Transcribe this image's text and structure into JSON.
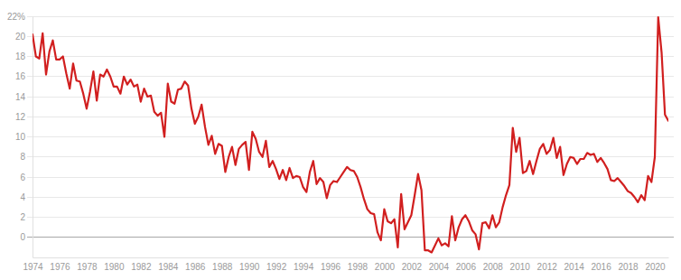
{
  "chart_data": {
    "type": "line",
    "color": "#d11f1f",
    "grid": true,
    "xlim": [
      1974,
      2021
    ],
    "xticks": [
      1974,
      1976,
      1978,
      1980,
      1982,
      1984,
      1986,
      1988,
      1990,
      1992,
      1994,
      1996,
      1998,
      2000,
      2002,
      2004,
      2006,
      2008,
      2010,
      2012,
      2014,
      2016,
      2018,
      2020
    ],
    "ylim": [
      -2,
      22
    ],
    "yticks": [
      0,
      2,
      4,
      6,
      8,
      10,
      12,
      14,
      16,
      18,
      20,
      {
        "value": 22,
        "label": "22%"
      }
    ],
    "x": [
      1974,
      1974.25,
      1974.5,
      1974.75,
      1975,
      1975.25,
      1975.5,
      1975.75,
      1976,
      1976.25,
      1976.5,
      1976.75,
      1977,
      1977.25,
      1977.5,
      1977.75,
      1978,
      1978.25,
      1978.5,
      1978.75,
      1979,
      1979.25,
      1979.5,
      1979.75,
      1980,
      1980.25,
      1980.5,
      1980.75,
      1981,
      1981.25,
      1981.5,
      1981.75,
      1982,
      1982.25,
      1982.5,
      1982.75,
      1983,
      1983.25,
      1983.5,
      1983.75,
      1984,
      1984.25,
      1984.5,
      1984.75,
      1985,
      1985.25,
      1985.5,
      1985.75,
      1986,
      1986.25,
      1986.5,
      1986.75,
      1987,
      1987.25,
      1987.5,
      1987.75,
      1988,
      1988.25,
      1988.5,
      1988.75,
      1989,
      1989.25,
      1989.5,
      1989.75,
      1990,
      1990.25,
      1990.5,
      1990.75,
      1991,
      1991.25,
      1991.5,
      1991.75,
      1992,
      1992.25,
      1992.5,
      1992.75,
      1993,
      1993.25,
      1993.5,
      1993.75,
      1994,
      1994.25,
      1994.5,
      1994.75,
      1995,
      1995.25,
      1995.5,
      1995.75,
      1996,
      1996.25,
      1996.5,
      1996.75,
      1997,
      1997.25,
      1997.5,
      1997.75,
      1998,
      1998.25,
      1998.5,
      1998.75,
      1999,
      1999.25,
      1999.5,
      1999.75,
      2000,
      2000.25,
      2000.5,
      2000.75,
      2001,
      2001.25,
      2001.5,
      2001.75,
      2002,
      2002.25,
      2002.5,
      2002.75,
      2003,
      2003.25,
      2003.5,
      2003.75,
      2004,
      2004.25,
      2004.5,
      2004.75,
      2005,
      2005.25,
      2005.5,
      2005.75,
      2006,
      2006.25,
      2006.5,
      2006.75,
      2007,
      2007.25,
      2007.5,
      2007.75,
      2008,
      2008.25,
      2008.5,
      2008.75,
      2009,
      2009.25,
      2009.5,
      2009.75,
      2010,
      2010.25,
      2010.5,
      2010.75,
      2011,
      2011.25,
      2011.5,
      2011.75,
      2012,
      2012.25,
      2012.5,
      2012.75,
      2013,
      2013.25,
      2013.5,
      2013.75,
      2014,
      2014.25,
      2014.5,
      2014.75,
      2015,
      2015.25,
      2015.5,
      2015.75,
      2016,
      2016.25,
      2016.5,
      2016.75,
      2017,
      2017.25,
      2017.5,
      2017.75,
      2018,
      2018.25,
      2018.5,
      2018.75,
      2019,
      2019.25,
      2019.5,
      2019.75,
      2020,
      2020.25,
      2020.5,
      2020.75,
      2021
    ],
    "values": [
      20.2,
      18.0,
      17.8,
      20.3,
      16.2,
      18.5,
      19.6,
      17.7,
      17.7,
      18.0,
      16.3,
      14.8,
      17.3,
      15.6,
      15.5,
      14.3,
      12.8,
      14.5,
      16.5,
      13.6,
      16.2,
      16.0,
      16.7,
      16.0,
      15.0,
      15.0,
      14.3,
      16.0,
      15.2,
      15.7,
      15.0,
      15.2,
      13.5,
      14.8,
      14.0,
      14.1,
      12.5,
      12.1,
      12.4,
      10.0,
      15.3,
      13.5,
      13.3,
      14.7,
      14.8,
      15.5,
      15.1,
      12.8,
      11.3,
      12.0,
      13.2,
      11.0,
      9.2,
      10.1,
      8.3,
      9.3,
      9.1,
      6.5,
      8.0,
      9.0,
      7.2,
      8.8,
      9.2,
      9.5,
      6.7,
      10.5,
      9.8,
      8.5,
      8.0,
      9.6,
      7.0,
      7.6,
      6.8,
      5.8,
      6.7,
      5.7,
      6.9,
      5.9,
      6.1,
      6.0,
      5.0,
      4.5,
      6.5,
      7.6,
      5.3,
      5.9,
      5.5,
      3.9,
      5.2,
      5.6,
      5.5,
      6.0,
      6.5,
      7.0,
      6.7,
      6.6,
      6.0,
      5.0,
      3.8,
      2.8,
      2.4,
      2.3,
      0.5,
      -0.3,
      2.8,
      1.6,
      1.4,
      1.8,
      -1.0,
      4.3,
      0.8,
      1.5,
      2.2,
      4.2,
      6.3,
      4.7,
      -1.3,
      -1.3,
      -1.5,
      -0.8,
      -0.1,
      -0.8,
      -0.6,
      -0.9,
      2.1,
      -0.3,
      1.0,
      1.8,
      2.2,
      1.6,
      0.7,
      0.3,
      -1.2,
      1.4,
      1.5,
      0.9,
      2.2,
      1.0,
      1.5,
      3.0,
      4.2,
      5.2,
      10.9,
      8.5,
      9.9,
      6.4,
      6.6,
      7.6,
      6.3,
      7.6,
      8.8,
      9.3,
      8.3,
      8.7,
      9.9,
      7.9,
      9.0,
      6.2,
      7.3,
      8.0,
      7.9,
      7.3,
      7.8,
      7.8,
      8.4,
      8.2,
      8.3,
      7.5,
      7.9,
      7.4,
      6.8,
      5.7,
      5.6,
      5.9,
      5.5,
      5.1,
      4.6,
      4.4,
      4.0,
      3.5,
      4.2,
      3.7,
      6.1,
      5.5,
      8.0,
      21.9,
      18.4,
      12.2,
      11.6
    ]
  }
}
